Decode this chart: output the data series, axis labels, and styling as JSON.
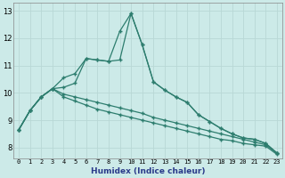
{
  "xlabel": "Humidex (Indice chaleur)",
  "xlim": [
    -0.5,
    23.5
  ],
  "ylim": [
    7.6,
    13.3
  ],
  "background_color": "#cceae8",
  "grid_color_major": "#b8d8d5",
  "grid_color_minor": "#d4eceb",
  "line_color": "#2d7d6e",
  "xticks": [
    0,
    1,
    2,
    3,
    4,
    5,
    6,
    7,
    8,
    9,
    10,
    11,
    12,
    13,
    14,
    15,
    16,
    17,
    18,
    19,
    20,
    21,
    22,
    23
  ],
  "yticks": [
    8,
    9,
    10,
    11,
    12,
    13
  ],
  "line1_y": [
    8.65,
    9.35,
    9.85,
    10.15,
    10.55,
    10.7,
    11.25,
    11.2,
    11.15,
    12.25,
    12.9,
    11.75,
    10.4,
    10.1,
    9.85,
    9.65,
    9.2,
    8.95,
    8.7,
    8.5,
    8.35,
    8.3,
    8.15,
    7.8
  ],
  "line2_y": [
    8.65,
    9.35,
    9.85,
    10.15,
    10.2,
    10.35,
    11.25,
    11.2,
    11.15,
    11.2,
    12.9,
    11.75,
    10.4,
    10.1,
    9.85,
    9.65,
    9.2,
    8.95,
    8.7,
    8.5,
    8.35,
    8.3,
    8.15,
    7.8
  ],
  "line3_y": [
    8.65,
    9.35,
    9.85,
    10.15,
    9.95,
    9.85,
    9.75,
    9.65,
    9.55,
    9.45,
    9.35,
    9.25,
    9.1,
    9.0,
    8.9,
    8.8,
    8.7,
    8.6,
    8.5,
    8.4,
    8.3,
    8.2,
    8.1,
    7.8
  ],
  "line4_y": [
    8.65,
    9.35,
    9.85,
    10.15,
    9.85,
    9.7,
    9.55,
    9.4,
    9.3,
    9.2,
    9.1,
    9.0,
    8.9,
    8.8,
    8.7,
    8.6,
    8.5,
    8.4,
    8.3,
    8.25,
    8.15,
    8.1,
    8.05,
    7.75
  ]
}
